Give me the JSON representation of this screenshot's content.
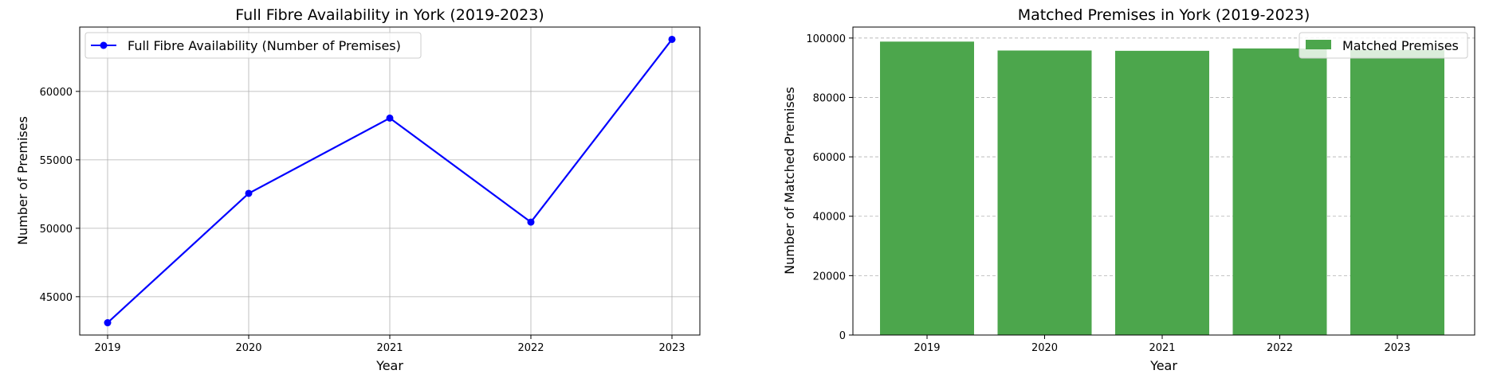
{
  "chart_data": [
    {
      "type": "line",
      "title": "Full Fibre Availability in York (2019-2023)",
      "xlabel": "Year",
      "ylabel": "Number of Premises",
      "categories": [
        "2019",
        "2020",
        "2021",
        "2022",
        "2023"
      ],
      "series": [
        {
          "name": "Full Fibre Availability (Number of Premises)",
          "values": [
            43100,
            52550,
            58050,
            50450,
            63800
          ],
          "color": "#0000ff",
          "marker": "circle"
        }
      ],
      "yticks": [
        45000,
        50000,
        55000,
        60000
      ],
      "ylim": [
        42200,
        64700
      ],
      "grid": true,
      "legend": "top-left"
    },
    {
      "type": "bar",
      "title": "Matched Premises in York (2019-2023)",
      "xlabel": "Year",
      "ylabel": "Number of Matched Premises",
      "categories": [
        "2019",
        "2020",
        "2021",
        "2022",
        "2023"
      ],
      "series": [
        {
          "name": "Matched Premises",
          "values": [
            98800,
            95800,
            95700,
            96500,
            96000
          ],
          "color": "#4ca64c"
        }
      ],
      "yticks": [
        0,
        20000,
        40000,
        60000,
        80000,
        100000
      ],
      "ylim": [
        0,
        103700
      ],
      "grid": "y-dashed",
      "legend": "top-right"
    }
  ]
}
